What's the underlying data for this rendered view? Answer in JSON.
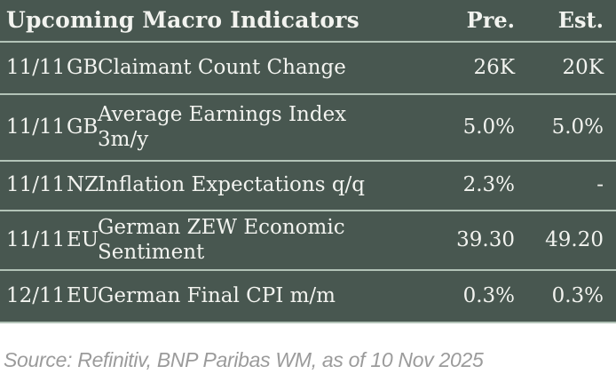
{
  "table": {
    "title": "Upcoming Macro Indicators",
    "columns": {
      "previous": "Pre.",
      "estimate": "Est."
    },
    "rows": [
      {
        "date": "11/11",
        "country": "GB",
        "indicator": "Claimant Count Change",
        "previous": "26K",
        "estimate": "20K"
      },
      {
        "date": "11/11",
        "country": "GB",
        "indicator": "Average Earnings Index\n3m/y",
        "previous": "5.0%",
        "estimate": "5.0%"
      },
      {
        "date": "11/11",
        "country": "NZ",
        "indicator": "Inflation Expectations q/q",
        "previous": "2.3%",
        "estimate": "-"
      },
      {
        "date": "11/11",
        "country": "EU",
        "indicator": "German ZEW Economic\nSentiment",
        "previous": "39.30",
        "estimate": "49.20"
      },
      {
        "date": "12/11",
        "country": "EU",
        "indicator": "German Final CPI m/m",
        "previous": "0.3%",
        "estimate": "0.3%"
      }
    ],
    "colors": {
      "background": "#485750",
      "separator": "#b2c3b7",
      "text": "#f2f3ef"
    }
  },
  "footer": {
    "source": "Source: Refinitiv, BNP Paribas WM, as of 10 Nov 2025",
    "color": "#9b9b9b"
  }
}
